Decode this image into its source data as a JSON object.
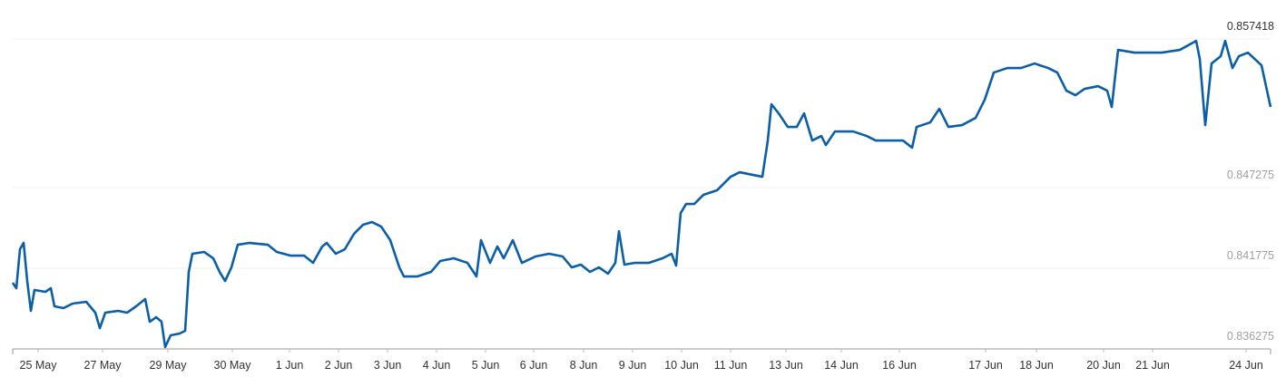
{
  "chart_data": {
    "type": "line",
    "x": [
      0,
      4,
      8,
      12,
      16,
      20,
      24,
      36,
      42,
      46,
      56,
      66,
      81,
      91,
      96,
      102,
      116,
      126,
      136,
      146,
      151,
      158,
      164,
      168,
      174,
      184,
      190,
      194,
      198,
      211,
      221,
      228,
      234,
      241,
      248,
      261,
      281,
      291,
      306,
      321,
      331,
      341,
      346,
      356,
      366,
      376,
      386,
      396,
      406,
      416,
      426,
      431,
      446,
      461,
      471,
      486,
      501,
      511,
      516,
      526,
      534,
      541,
      551,
      561,
      576,
      591,
      606,
      616,
      626,
      636,
      646,
      656,
      664,
      668,
      674,
      686,
      701,
      716,
      726,
      731,
      736,
      742,
      751,
      761,
      776,
      791,
      801,
      816,
      826,
      832,
      836,
      844,
      854,
      864,
      872,
      881,
      891,
      896,
      906,
      926,
      941,
      951,
      966,
      981,
      991,
      996,
      1011,
      1021,
      1031,
      1046,
      1061,
      1071,
      1081,
      1096,
      1111,
      1126,
      1141,
      1151,
      1161,
      1171,
      1181,
      1196,
      1206,
      1211,
      1218,
      1236,
      1266,
      1286,
      1304,
      1308,
      1314,
      1321,
      1331,
      1336,
      1344,
      1351,
      1361,
      1376,
      1386
    ],
    "series": [
      {
        "color": "#0b5ea8",
        "values": [
          0.840786,
          0.840416,
          0.843073,
          0.843506,
          0.84091,
          0.838871,
          0.840292,
          0.840168,
          0.840416,
          0.83918,
          0.839056,
          0.839365,
          0.839489,
          0.838747,
          0.837696,
          0.838747,
          0.838871,
          0.838747,
          0.83918,
          0.839674,
          0.838129,
          0.838438,
          0.838129,
          0.836399,
          0.837202,
          0.837326,
          0.837511,
          0.841528,
          0.842764,
          0.842888,
          0.842455,
          0.841528,
          0.84091,
          0.841837,
          0.843382,
          0.843506,
          0.843382,
          0.842888,
          0.84264,
          0.84264,
          0.842146,
          0.843258,
          0.843506,
          0.842764,
          0.843073,
          0.844124,
          0.844742,
          0.844927,
          0.844618,
          0.843691,
          0.841837,
          0.841219,
          0.841219,
          0.841528,
          0.84227,
          0.842455,
          0.842146,
          0.841219,
          0.843691,
          0.842146,
          0.843258,
          0.842455,
          0.843691,
          0.842146,
          0.842579,
          0.842764,
          0.842579,
          0.841837,
          0.842022,
          0.841528,
          0.841837,
          0.841404,
          0.842146,
          0.844309,
          0.842022,
          0.842146,
          0.842146,
          0.842455,
          0.842764,
          0.841961,
          0.845545,
          0.846163,
          0.846163,
          0.846781,
          0.84709,
          0.848017,
          0.848326,
          0.848141,
          0.848017,
          0.850489,
          0.852961,
          0.852343,
          0.851416,
          0.851416,
          0.852343,
          0.850489,
          0.850798,
          0.85018,
          0.851107,
          0.851107,
          0.850798,
          0.850489,
          0.850489,
          0.850489,
          0.849995,
          0.851416,
          0.851725,
          0.852652,
          0.851416,
          0.85154,
          0.852034,
          0.85327,
          0.855124,
          0.855433,
          0.855433,
          0.855742,
          0.855433,
          0.855124,
          0.853888,
          0.853579,
          0.854012,
          0.854197,
          0.853888,
          0.852776,
          0.856669,
          0.856484,
          0.856484,
          0.856669,
          0.857287,
          0.856051,
          0.85154,
          0.855742,
          0.856236,
          0.857287,
          0.855433,
          0.856236,
          0.856484,
          0.855618,
          0.852776
        ]
      }
    ],
    "xlim": [
      0,
      1386
    ],
    "xticks": [
      {
        "value": 28,
        "label": "25 May"
      },
      {
        "value": 99,
        "label": "27 May"
      },
      {
        "value": 171,
        "label": "29 May"
      },
      {
        "value": 242,
        "label": "30 May"
      },
      {
        "value": 305,
        "label": "1 Jun"
      },
      {
        "value": 359,
        "label": "2 Jun"
      },
      {
        "value": 413,
        "label": "3 Jun"
      },
      {
        "value": 467,
        "label": "4 Jun"
      },
      {
        "value": 521,
        "label": "5 Jun"
      },
      {
        "value": 574,
        "label": "6 Jun"
      },
      {
        "value": 629,
        "label": "8 Jun"
      },
      {
        "value": 683,
        "label": "9 Jun"
      },
      {
        "value": 737,
        "label": "10 Jun"
      },
      {
        "value": 791,
        "label": "11 Jun"
      },
      {
        "value": 852,
        "label": "13 Jun"
      },
      {
        "value": 913,
        "label": "14 Jun"
      },
      {
        "value": 977,
        "label": "16 Jun"
      },
      {
        "value": 1072,
        "label": "17 Jun"
      },
      {
        "value": 1128,
        "label": "18 Jun"
      },
      {
        "value": 1202,
        "label": "20 Jun"
      },
      {
        "value": 1256,
        "label": "21 Jun"
      },
      {
        "value": 1359,
        "label": "24 Jun"
      }
    ],
    "ylim": [
      0.836275,
      0.8588
    ],
    "yticks": [
      0.836275,
      0.841775,
      0.847275,
      0.857418
    ],
    "grid": true
  }
}
